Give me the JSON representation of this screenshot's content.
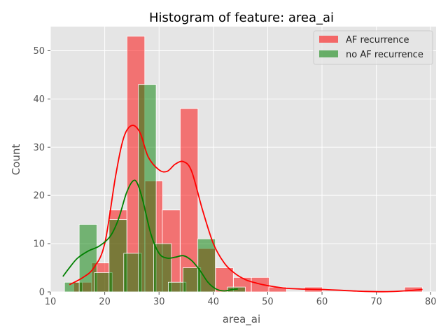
{
  "chart_data": {
    "type": "bar",
    "title": "Histogram of feature: area_ai",
    "xlabel": "area_ai",
    "ylabel": "Count",
    "xlim": [
      10,
      81
    ],
    "ylim": [
      0,
      55
    ],
    "xticks": [
      10,
      20,
      30,
      40,
      50,
      60,
      70,
      80
    ],
    "yticks": [
      0,
      10,
      20,
      30,
      40,
      50
    ],
    "grid": true,
    "legend_position": "top-right",
    "bin_width": 3.27,
    "series": [
      {
        "name": "AF recurrence",
        "color": "#ff0000",
        "kde_color": "#ff0000",
        "bins": [
          {
            "x0": 14.3,
            "count": 2
          },
          {
            "x0": 17.6,
            "count": 6
          },
          {
            "x0": 20.8,
            "count": 17
          },
          {
            "x0": 24.1,
            "count": 53
          },
          {
            "x0": 27.4,
            "count": 23
          },
          {
            "x0": 30.6,
            "count": 17
          },
          {
            "x0": 33.9,
            "count": 38
          },
          {
            "x0": 37.2,
            "count": 9
          },
          {
            "x0": 40.4,
            "count": 5
          },
          {
            "x0": 43.7,
            "count": 3
          },
          {
            "x0": 47.0,
            "count": 3
          },
          {
            "x0": 50.2,
            "count": 1
          },
          {
            "x0": 56.8,
            "count": 1
          },
          {
            "x0": 75.2,
            "count": 1
          }
        ],
        "kde": [
          [
            13.5,
            1.5
          ],
          [
            16,
            3
          ],
          [
            18,
            5
          ],
          [
            20,
            10
          ],
          [
            22,
            24
          ],
          [
            23.5,
            32
          ],
          [
            25,
            34.5
          ],
          [
            26.5,
            33
          ],
          [
            28,
            28
          ],
          [
            30,
            25.3
          ],
          [
            31.5,
            25
          ],
          [
            33,
            26.5
          ],
          [
            34.5,
            27
          ],
          [
            36,
            25
          ],
          [
            38,
            17
          ],
          [
            40,
            10
          ],
          [
            42,
            6
          ],
          [
            44,
            3.8
          ],
          [
            46,
            2.5
          ],
          [
            48,
            1.8
          ],
          [
            50,
            1.3
          ],
          [
            53,
            0.8
          ],
          [
            56,
            0.6
          ],
          [
            60,
            0.5
          ],
          [
            64,
            0.3
          ],
          [
            68,
            0.1
          ],
          [
            72,
            0.05
          ],
          [
            75,
            0.2
          ],
          [
            78.5,
            0.5
          ]
        ]
      },
      {
        "name": "no AF recurrence",
        "color": "#008000",
        "kde_color": "#008000",
        "bins": [
          {
            "x0": 12.6,
            "count": 2
          },
          {
            "x0": 15.3,
            "count": 14
          },
          {
            "x0": 18.1,
            "count": 4
          },
          {
            "x0": 20.8,
            "count": 15
          },
          {
            "x0": 23.5,
            "count": 8
          },
          {
            "x0": 26.2,
            "count": 43
          },
          {
            "x0": 29.0,
            "count": 10
          },
          {
            "x0": 31.7,
            "count": 2
          },
          {
            "x0": 34.4,
            "count": 5
          },
          {
            "x0": 37.1,
            "count": 11
          },
          {
            "x0": 42.6,
            "count": 1
          }
        ],
        "kde": [
          [
            12.3,
            3.2
          ],
          [
            13.5,
            5
          ],
          [
            15,
            7
          ],
          [
            17,
            8.5
          ],
          [
            19,
            9.5
          ],
          [
            21,
            11.5
          ],
          [
            22.5,
            15
          ],
          [
            24,
            20.5
          ],
          [
            25.2,
            23
          ],
          [
            26,
            22.5
          ],
          [
            27,
            19
          ],
          [
            28.5,
            12
          ],
          [
            30,
            8
          ],
          [
            31.5,
            7
          ],
          [
            33,
            7.2
          ],
          [
            34.5,
            7.5
          ],
          [
            36,
            6.5
          ],
          [
            37.5,
            4.5
          ],
          [
            39,
            2
          ],
          [
            40.5,
            0.6
          ],
          [
            42,
            0.2
          ],
          [
            43.5,
            0.5
          ],
          [
            44.5,
            0.6
          ]
        ]
      }
    ]
  }
}
